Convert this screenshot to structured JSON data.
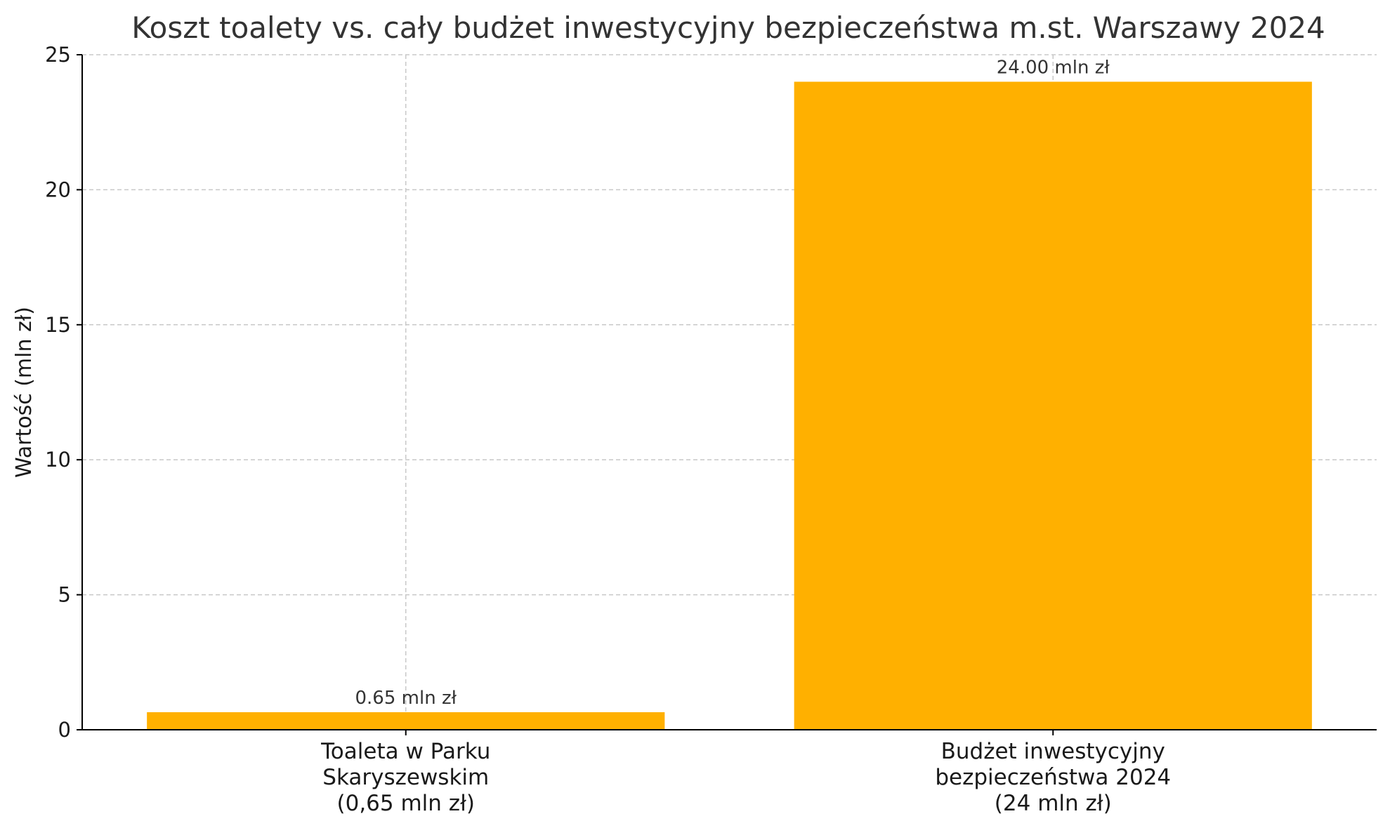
{
  "chart_data": {
    "type": "bar",
    "title": "Koszt toalety vs. cały budżet inwestycyjny bezpieczeństwa m.st. Warszawy 2024",
    "xlabel": "",
    "ylabel": "Wartość (mln zł)",
    "ylim": [
      0,
      25
    ],
    "yticks": [
      0,
      5,
      10,
      15,
      20,
      25
    ],
    "ytick_labels": [
      "0",
      "5",
      "10",
      "15",
      "20",
      "25"
    ],
    "grid": true,
    "bar_color": "#ffb000",
    "categories": [
      [
        "Toaleta w Parku",
        "Skaryszewskim",
        "(0,65 mln zł)"
      ],
      [
        "Budżet inwestycyjny",
        "bezpieczeństwa 2024",
        "(24 mln zł)"
      ]
    ],
    "values": [
      0.65,
      24.0
    ],
    "data_labels": [
      "0.65 mln zł",
      "24.00 mln zł"
    ]
  }
}
